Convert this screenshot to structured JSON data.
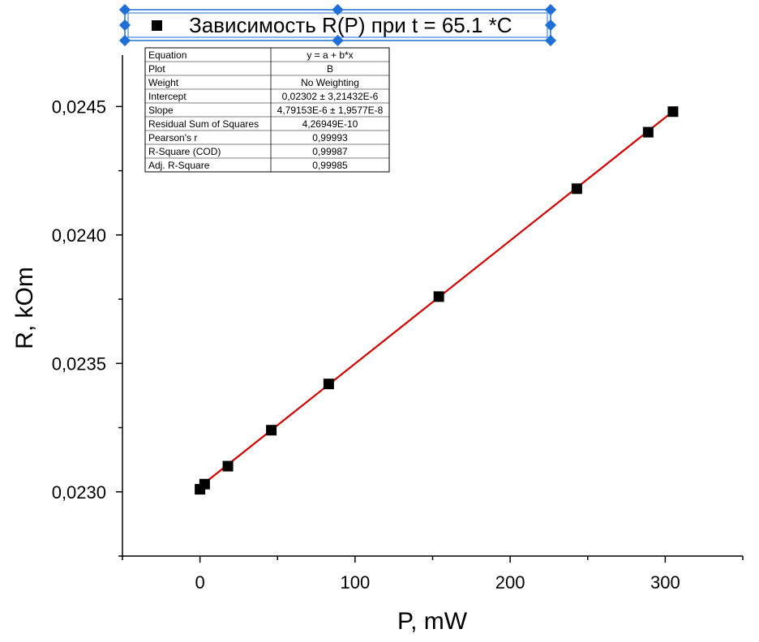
{
  "chart_data": {
    "type": "scatter",
    "xlabel": "P, mW",
    "ylabel": "R, kOm",
    "xlim": [
      -50,
      350
    ],
    "ylim": [
      0.02275,
      0.0247
    ],
    "xticks": [
      0,
      100,
      200,
      300
    ],
    "xtick_labels": [
      "0",
      "100",
      "200",
      "300"
    ],
    "yticks": [
      0.023,
      0.0235,
      0.024,
      0.0245
    ],
    "ytick_labels": [
      "0,0230",
      "0,0235",
      "0,0240",
      "0,0245"
    ],
    "grid": false,
    "legend_position": "top",
    "series": [
      {
        "name": "Зависимость R(P) при t = 65.1 *C",
        "marker": "square",
        "color": "#000000",
        "x": [
          0,
          3,
          18,
          46,
          83,
          154,
          243,
          289,
          305
        ],
        "y": [
          0.02301,
          0.02303,
          0.0231,
          0.02324,
          0.02342,
          0.02376,
          0.02418,
          0.0244,
          0.02448
        ]
      }
    ],
    "fit_line": {
      "color": "#d00000",
      "x": [
        0,
        305
      ],
      "y": [
        0.02302,
        0.024481
      ]
    },
    "stats_table": [
      [
        "Equation",
        "y = a + b*x"
      ],
      [
        "Plot",
        "B"
      ],
      [
        "Weight",
        "No Weighting"
      ],
      [
        "Intercept",
        "0,02302 ± 3,21432E-6"
      ],
      [
        "Slope",
        "4,79153E-6 ± 1,9577E-8"
      ],
      [
        "Residual Sum of Squares",
        "4,26949E-10"
      ],
      [
        "Pearson's r",
        "0,99993"
      ],
      [
        "R-Square (COD)",
        "0,99987"
      ],
      [
        "Adj. R-Square",
        "0,99985"
      ]
    ],
    "selection_color": "#1f6fd6"
  }
}
